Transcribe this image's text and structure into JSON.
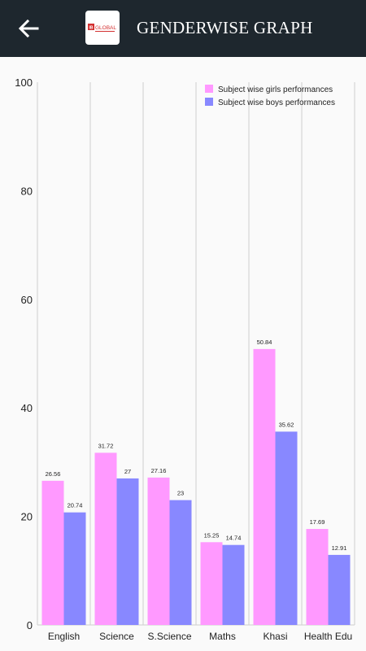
{
  "header": {
    "title": "GENDERWISE GRAPH",
    "back_icon": "arrow-left-icon",
    "logo_text": "GLOBAL",
    "logo_badge": "IB"
  },
  "colors": {
    "appbar": "#1e272e",
    "girls": "#ff99ff",
    "boys": "#8888ff"
  },
  "chart_data": {
    "type": "bar",
    "categories": [
      "English",
      "Science",
      "S.Science",
      "Maths",
      "Khasi",
      "Health Edu"
    ],
    "series": [
      {
        "name": "Subject wise girls performances",
        "values": [
          26.56,
          31.72,
          27.16,
          15.25,
          50.84,
          17.69
        ],
        "labels": [
          "26.56",
          "31.72",
          "27.16",
          "15.25",
          "50.84",
          "17.69"
        ],
        "color": "#ff99ff"
      },
      {
        "name": "Subject wise boys performances",
        "values": [
          20.74,
          27,
          23,
          14.74,
          35.62,
          12.91
        ],
        "labels": [
          "20.74",
          "27",
          "23",
          "14.74",
          "35.62",
          "12.91"
        ],
        "color": "#8888ff"
      }
    ],
    "ylim": [
      0,
      100
    ],
    "yticks": [
      "0",
      "20",
      "40",
      "60",
      "80",
      "100"
    ],
    "legend": "top-right",
    "grid": "vertical"
  }
}
